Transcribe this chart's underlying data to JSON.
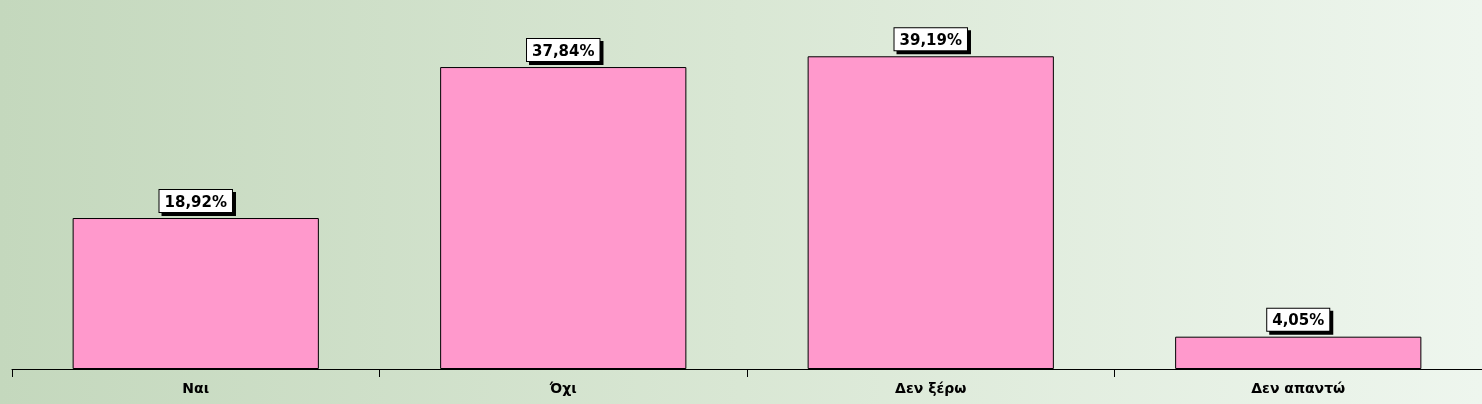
{
  "chart_data": {
    "type": "bar",
    "categories": [
      "Ναι",
      "Όχι",
      "Δεν ξέρω",
      "Δεν απαντώ"
    ],
    "values": [
      18.92,
      37.84,
      39.19,
      4.05
    ],
    "value_labels": [
      "18,92%",
      "37,84%",
      "39,19%",
      "4,05%"
    ],
    "color": "#ff99cc"
  }
}
